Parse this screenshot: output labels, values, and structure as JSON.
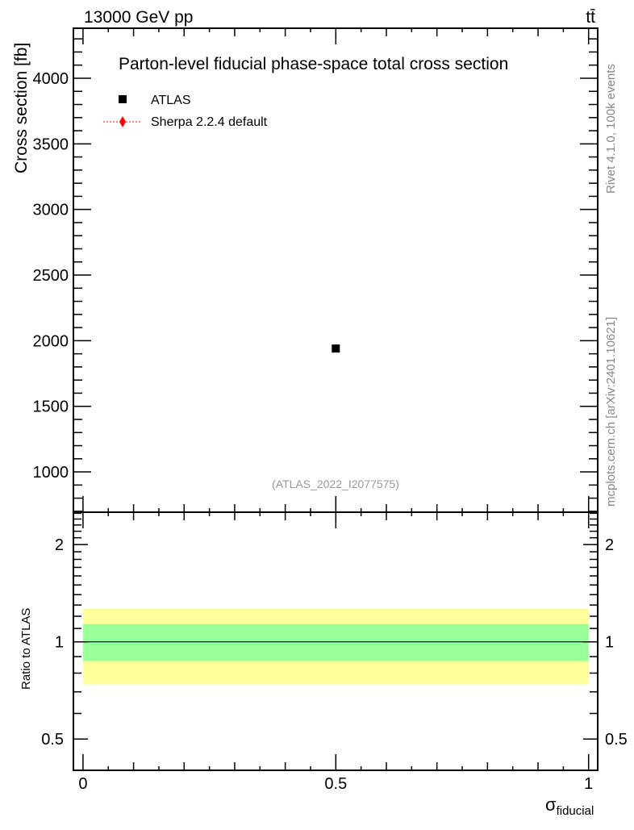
{
  "header": {
    "left": "13000 GeV pp",
    "right": "tt̄"
  },
  "side_labels": {
    "rivet": "Rivet 4.1.0,  100k events",
    "mcplots": "mcplots.cern.ch [arXiv:2401.10621]"
  },
  "colors": {
    "data": "#000000",
    "mc": "#ff0000",
    "band_inner": "#99ff99",
    "band_outer": "#ffff99"
  },
  "chart_data": [
    {
      "type": "scatter",
      "title": "Parton-level fiducial phase-space total cross section",
      "ylabel": "Cross section [fb]",
      "xlim": [
        -0.019,
        1.018
      ],
      "ylim": [
        693,
        4381
      ],
      "yticks": [
        1000,
        1500,
        2000,
        2500,
        3000,
        3500,
        4000
      ],
      "yticklabels": [
        "1000",
        "1500",
        "2000",
        "2500",
        "3000",
        "3500",
        "4000"
      ],
      "legend": [
        {
          "name": "ATLAS",
          "marker": "square"
        },
        {
          "name": "Sherpa 2.2.4 default",
          "marker": "diamond"
        }
      ],
      "legend_position": "top-left",
      "series": [
        {
          "name": "ATLAS",
          "x": [
            0.5
          ],
          "y": [
            1940
          ]
        }
      ],
      "annotation": "(ATLAS_2022_I2077575)"
    },
    {
      "type": "line",
      "ylabel": "Ratio to ATLAS",
      "xlabel": "σ",
      "xlabel_sub": "fiducial",
      "yscale": "log",
      "xlim": [
        -0.019,
        1.018
      ],
      "ylim": [
        0.4,
        2.52
      ],
      "xticks": [
        0,
        0.5,
        1
      ],
      "xticklabels": [
        "0",
        "0.5",
        "1"
      ],
      "yticks": [
        0.5,
        1,
        2
      ],
      "yticklabels": [
        "0.5",
        "1",
        "2"
      ],
      "bands": [
        {
          "name": "outer",
          "x": [
            0,
            1
          ],
          "low": 0.738,
          "high": 1.267
        },
        {
          "name": "inner",
          "x": [
            0,
            1
          ],
          "low": 0.872,
          "high": 1.135
        }
      ],
      "reference_line": 1
    }
  ]
}
